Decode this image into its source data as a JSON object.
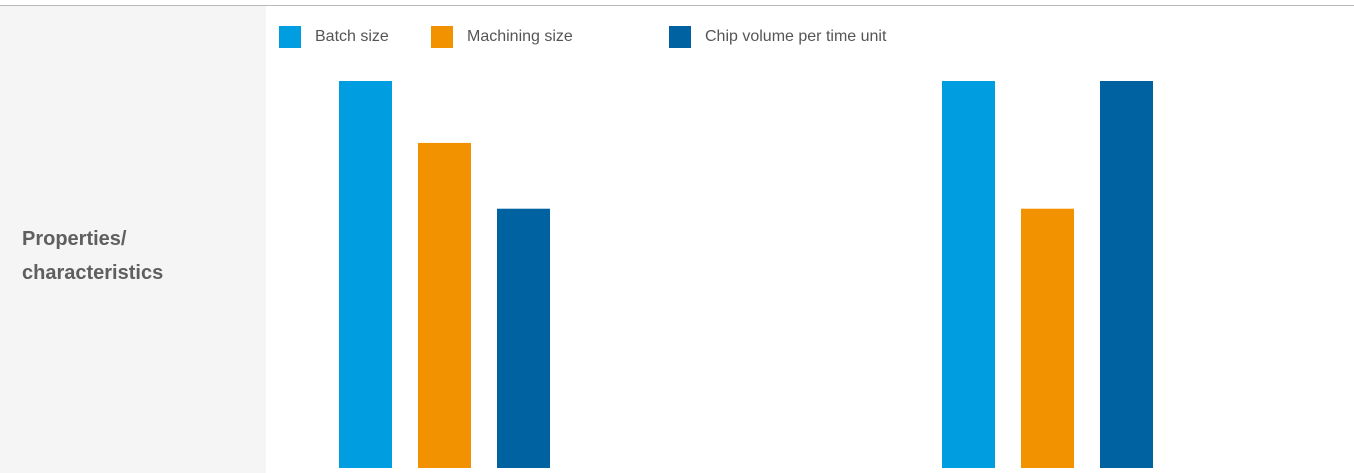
{
  "side_label": {
    "line1": "Properties/",
    "line2": "characteristics"
  },
  "chart_data": {
    "type": "bar",
    "categories": [
      "",
      ""
    ],
    "series": [
      {
        "name": "Batch size",
        "color": "#009de0",
        "values": [
          100,
          100
        ]
      },
      {
        "name": "Machining size",
        "color": "#f39200",
        "values": [
          84,
          67
        ]
      },
      {
        "name": "Chip volume per time unit",
        "color": "#0062a1",
        "values": [
          67,
          100
        ]
      }
    ],
    "title": "",
    "xlabel": "",
    "ylabel": "",
    "ylim": [
      0,
      100
    ],
    "grid": false,
    "legend_position": "top-left"
  }
}
